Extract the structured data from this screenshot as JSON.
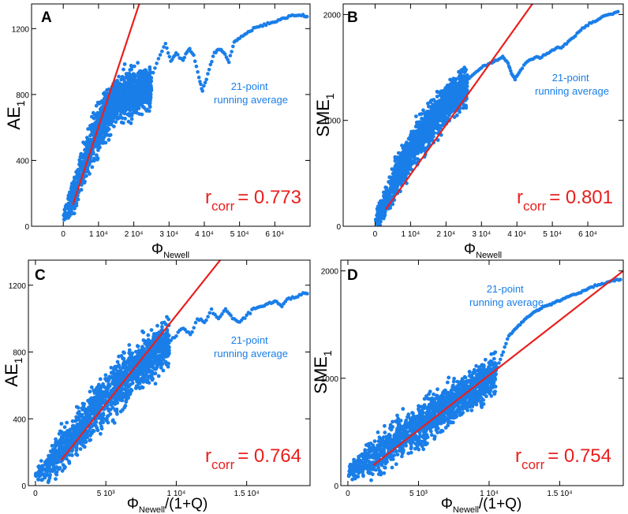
{
  "colors": {
    "scatter": "#1a7ee8",
    "fit": "#e8201e",
    "axis": "#000000"
  },
  "chart_data": [
    {
      "type": "scatter",
      "panel_label": "A",
      "ylabel_main": "AE",
      "ylabel_sub": "1",
      "xlabel_main": "Φ",
      "xlabel_sub": "Newell",
      "xlabel_tail": "",
      "xlim": [
        -9000,
        70000
      ],
      "ylim": [
        0,
        1350
      ],
      "xticks": [
        {
          "v": 0,
          "label": "0"
        },
        {
          "v": 10000,
          "label": "1 10⁴"
        },
        {
          "v": 20000,
          "label": "2 10⁴"
        },
        {
          "v": 30000,
          "label": "3 10⁴"
        },
        {
          "v": 40000,
          "label": "4 10⁴"
        },
        {
          "v": 50000,
          "label": "5 10⁴"
        },
        {
          "v": 60000,
          "label": "6 10⁴"
        }
      ],
      "yticks": [
        {
          "v": 0,
          "label": "0"
        },
        {
          "v": 400,
          "label": "400"
        },
        {
          "v": 800,
          "label": "800"
        },
        {
          "v": 1200,
          "label": "1200"
        }
      ],
      "annotation_lines": [
        "21-point",
        "running average"
      ],
      "r_main": "r",
      "r_sub": "corr",
      "r_value": "= 0.773",
      "fit_line": [
        [
          2700,
          130
        ],
        [
          22000,
          1380
        ]
      ],
      "running_average": [
        [
          25000,
          900
        ],
        [
          27000,
          1020
        ],
        [
          29000,
          1110
        ],
        [
          30500,
          1000
        ],
        [
          32000,
          1050
        ],
        [
          34000,
          1000
        ],
        [
          35500,
          1080
        ],
        [
          37000,
          1040
        ],
        [
          38500,
          900
        ],
        [
          39500,
          820
        ],
        [
          41000,
          920
        ],
        [
          42500,
          1040
        ],
        [
          44000,
          1070
        ],
        [
          45500,
          1060
        ],
        [
          47000,
          1000
        ],
        [
          48500,
          1120
        ],
        [
          50000,
          1140
        ],
        [
          52000,
          1170
        ],
        [
          54000,
          1200
        ],
        [
          56000,
          1220
        ],
        [
          58000,
          1230
        ],
        [
          60000,
          1240
        ],
        [
          62000,
          1260
        ],
        [
          64000,
          1270
        ],
        [
          66000,
          1280
        ],
        [
          68000,
          1280
        ],
        [
          69500,
          1270
        ]
      ],
      "scatter_cloud": {
        "x_start": 0,
        "x_end": 25000,
        "points": [
          [
            0,
            60
          ],
          [
            2000,
            120
          ],
          [
            5000,
            330
          ],
          [
            8000,
            500
          ],
          [
            11000,
            640
          ],
          [
            14000,
            730
          ],
          [
            17000,
            790
          ],
          [
            20000,
            820
          ],
          [
            25000,
            830
          ]
        ],
        "spread": [
          [
            0,
            40
          ],
          [
            3000,
            110
          ],
          [
            10000,
            140
          ],
          [
            25000,
            120
          ]
        ]
      }
    },
    {
      "type": "scatter",
      "panel_label": "B",
      "ylabel_main": "SME",
      "ylabel_sub": "1",
      "xlabel_main": "Φ",
      "xlabel_sub": "Newell",
      "xlabel_tail": "",
      "xlim": [
        -9000,
        70000
      ],
      "ylim": [
        0,
        2100
      ],
      "xticks": [
        {
          "v": 0,
          "label": "0"
        },
        {
          "v": 10000,
          "label": "1 10⁴"
        },
        {
          "v": 20000,
          "label": "2 10⁴"
        },
        {
          "v": 30000,
          "label": "3 10⁴"
        },
        {
          "v": 40000,
          "label": "4 10⁴"
        },
        {
          "v": 50000,
          "label": "5 10⁴"
        },
        {
          "v": 60000,
          "label": "6 10⁴"
        }
      ],
      "yticks": [
        {
          "v": 0,
          "label": "0"
        },
        {
          "v": 1000,
          "label": "1000"
        },
        {
          "v": 2000,
          "label": "2000"
        }
      ],
      "annotation_lines": [
        "21-point",
        "running average"
      ],
      "r_main": "r",
      "r_sub": "corr",
      "r_value": "= 0.801",
      "fit_line": [
        [
          3000,
          160
        ],
        [
          45000,
          2130
        ]
      ],
      "running_average": [
        [
          26000,
          1380
        ],
        [
          28000,
          1440
        ],
        [
          30000,
          1500
        ],
        [
          32000,
          1530
        ],
        [
          34000,
          1560
        ],
        [
          36000,
          1600
        ],
        [
          37500,
          1540
        ],
        [
          38500,
          1440
        ],
        [
          39500,
          1390
        ],
        [
          41000,
          1470
        ],
        [
          43000,
          1560
        ],
        [
          45000,
          1590
        ],
        [
          47000,
          1600
        ],
        [
          49000,
          1640
        ],
        [
          51000,
          1680
        ],
        [
          53000,
          1700
        ],
        [
          55000,
          1760
        ],
        [
          57000,
          1820
        ],
        [
          59000,
          1880
        ],
        [
          61000,
          1920
        ],
        [
          63000,
          1960
        ],
        [
          65000,
          1990
        ],
        [
          67000,
          2010
        ],
        [
          69000,
          2030
        ]
      ],
      "scatter_cloud": {
        "x_start": 0,
        "x_end": 26000,
        "points": [
          [
            0,
            80
          ],
          [
            2000,
            160
          ],
          [
            6000,
            450
          ],
          [
            10000,
            700
          ],
          [
            14000,
            900
          ],
          [
            18000,
            1080
          ],
          [
            22000,
            1230
          ],
          [
            26000,
            1330
          ]
        ],
        "spread": [
          [
            0,
            60
          ],
          [
            4000,
            160
          ],
          [
            12000,
            190
          ],
          [
            26000,
            160
          ]
        ]
      }
    },
    {
      "type": "scatter",
      "panel_label": "C",
      "ylabel_main": "AE",
      "ylabel_sub": "1",
      "xlabel_main": "Φ",
      "xlabel_sub": "Newell",
      "xlabel_tail": "/(1+Q)",
      "xlim": [
        -500,
        19500
      ],
      "ylim": [
        0,
        1350
      ],
      "xticks": [
        {
          "v": 0,
          "label": "0"
        },
        {
          "v": 5000,
          "label": "5 10³"
        },
        {
          "v": 10000,
          "label": "1 10⁴"
        },
        {
          "v": 15000,
          "label": "1.5 10⁴"
        }
      ],
      "yticks": [
        {
          "v": 0,
          "label": "0"
        },
        {
          "v": 400,
          "label": "400"
        },
        {
          "v": 800,
          "label": "800"
        },
        {
          "v": 1200,
          "label": "1200"
        }
      ],
      "annotation_lines": [
        "21-point",
        "running average"
      ],
      "r_main": "r",
      "r_sub": "corr",
      "r_value": "= 0.764",
      "fit_line": [
        [
          1800,
          150
        ],
        [
          13400,
          1380
        ]
      ],
      "running_average": [
        [
          8500,
          880
        ],
        [
          9000,
          920
        ],
        [
          9500,
          860
        ],
        [
          10000,
          900
        ],
        [
          10500,
          950
        ],
        [
          11000,
          900
        ],
        [
          11500,
          1000
        ],
        [
          12000,
          980
        ],
        [
          12500,
          1050
        ],
        [
          13000,
          1000
        ],
        [
          13500,
          1060
        ],
        [
          14000,
          1000
        ],
        [
          14500,
          980
        ],
        [
          15000,
          1020
        ],
        [
          15500,
          1060
        ],
        [
          16000,
          1070
        ],
        [
          16500,
          1090
        ],
        [
          17000,
          1100
        ],
        [
          17500,
          1080
        ],
        [
          18000,
          1120
        ],
        [
          18500,
          1130
        ],
        [
          19000,
          1150
        ],
        [
          19400,
          1160
        ]
      ],
      "scatter_cloud": {
        "x_start": 0,
        "x_end": 9500,
        "points": [
          [
            0,
            60
          ],
          [
            1000,
            130
          ],
          [
            2500,
            280
          ],
          [
            4000,
            430
          ],
          [
            5500,
            570
          ],
          [
            7000,
            690
          ],
          [
            8500,
            790
          ],
          [
            9500,
            850
          ]
        ],
        "spread": [
          [
            0,
            45
          ],
          [
            2000,
            120
          ],
          [
            6000,
            150
          ],
          [
            9500,
            130
          ]
        ]
      }
    },
    {
      "type": "scatter",
      "panel_label": "D",
      "ylabel_main": "SME",
      "ylabel_sub": "1",
      "xlabel_main": "Φ",
      "xlabel_sub": "Newell",
      "xlabel_tail": "/(1+Q)",
      "xlim": [
        -500,
        19500
      ],
      "ylim": [
        0,
        2100
      ],
      "xticks": [
        {
          "v": 0,
          "label": "0"
        },
        {
          "v": 5000,
          "label": "5 10³"
        },
        {
          "v": 10000,
          "label": "1 10⁴"
        },
        {
          "v": 15000,
          "label": "1.5 10⁴"
        }
      ],
      "yticks": [
        {
          "v": 0,
          "label": "0"
        },
        {
          "v": 1000,
          "label": "1000"
        },
        {
          "v": 2000,
          "label": "2000"
        }
      ],
      "annotation_lines": [
        "21-point",
        "running average"
      ],
      "r_main": "r",
      "r_sub": "corr",
      "r_value": "= 0.754",
      "fit_line": [
        [
          1800,
          190
        ],
        [
          19500,
          2000
        ]
      ],
      "running_average": [
        [
          10200,
          1020
        ],
        [
          10600,
          1100
        ],
        [
          11000,
          1250
        ],
        [
          11400,
          1400
        ],
        [
          11800,
          1450
        ],
        [
          12200,
          1500
        ],
        [
          12600,
          1560
        ],
        [
          13000,
          1600
        ],
        [
          13400,
          1630
        ],
        [
          13800,
          1660
        ],
        [
          14200,
          1680
        ],
        [
          14600,
          1700
        ],
        [
          15000,
          1720
        ],
        [
          15500,
          1760
        ],
        [
          16000,
          1780
        ],
        [
          16500,
          1800
        ],
        [
          17000,
          1830
        ],
        [
          17500,
          1860
        ],
        [
          18000,
          1880
        ],
        [
          18500,
          1900
        ],
        [
          19000,
          1910
        ],
        [
          19400,
          1930
        ]
      ],
      "scatter_cloud": {
        "x_start": 0,
        "x_end": 10500,
        "points": [
          [
            0,
            130
          ],
          [
            1000,
            200
          ],
          [
            2500,
            330
          ],
          [
            4000,
            470
          ],
          [
            5500,
            600
          ],
          [
            7000,
            740
          ],
          [
            8500,
            870
          ],
          [
            10000,
            1000
          ],
          [
            10500,
            1040
          ]
        ],
        "spread": [
          [
            0,
            80
          ],
          [
            2000,
            180
          ],
          [
            6000,
            210
          ],
          [
            10500,
            170
          ]
        ]
      }
    }
  ]
}
